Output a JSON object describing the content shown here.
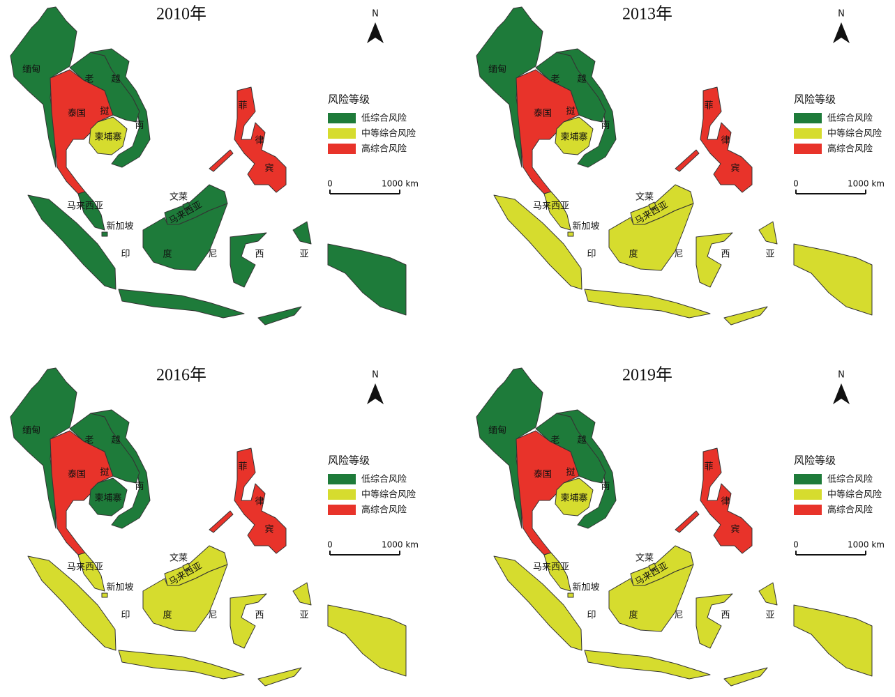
{
  "legend": {
    "title": "风险等级",
    "items": [
      {
        "label": "低综合风险",
        "color": "#1e7b3a"
      },
      {
        "label": "中等综合风险",
        "color": "#d6dc2e"
      },
      {
        "label": "高综合风险",
        "color": "#e8332a"
      }
    ]
  },
  "scale": {
    "ticks": [
      {
        "value": 0,
        "label": "0"
      },
      {
        "value": 1000,
        "label": "1000 km"
      }
    ]
  },
  "north": "N",
  "maps": [
    {
      "title": "2010年",
      "countries": [
        {
          "labels": [
            "缅甸"
          ],
          "color": "#1e7b3a"
        },
        {
          "labels": [
            "泰国"
          ],
          "color": "#e8332a"
        },
        {
          "labels": [
            "老",
            "挝"
          ],
          "color": "#1e7b3a"
        },
        {
          "labels": [
            "越",
            "南"
          ],
          "color": "#1e7b3a"
        },
        {
          "labels": [
            "柬埔寨"
          ],
          "color": "#d6dc2e"
        },
        {
          "labels": [
            "马来西亚",
            "马来西亚"
          ],
          "color": "#1e7b3a"
        },
        {
          "labels": [
            "文莱"
          ],
          "color": "#1e7b3a"
        },
        {
          "labels": [
            "新加坡"
          ],
          "color": "#1e7b3a"
        },
        {
          "labels": [
            "印",
            "度",
            "尼",
            "西",
            "亚"
          ],
          "color": "#1e7b3a"
        },
        {
          "labels": [
            "菲",
            "律",
            "宾"
          ],
          "color": "#e8332a"
        }
      ]
    },
    {
      "title": "2013年",
      "countries": [
        {
          "labels": [
            "缅甸"
          ],
          "color": "#1e7b3a"
        },
        {
          "labels": [
            "泰国"
          ],
          "color": "#e8332a"
        },
        {
          "labels": [
            "老",
            "挝"
          ],
          "color": "#1e7b3a"
        },
        {
          "labels": [
            "越",
            "南"
          ],
          "color": "#1e7b3a"
        },
        {
          "labels": [
            "柬埔寨"
          ],
          "color": "#d6dc2e"
        },
        {
          "labels": [
            "马来西亚",
            "马来西亚"
          ],
          "color": "#d6dc2e"
        },
        {
          "labels": [
            "文莱"
          ],
          "color": "#d6dc2e"
        },
        {
          "labels": [
            "新加坡"
          ],
          "color": "#d6dc2e"
        },
        {
          "labels": [
            "印",
            "度",
            "尼",
            "西",
            "亚"
          ],
          "color": "#d6dc2e"
        },
        {
          "labels": [
            "菲",
            "律",
            "宾"
          ],
          "color": "#e8332a"
        }
      ]
    },
    {
      "title": "2016年",
      "countries": [
        {
          "labels": [
            "缅甸"
          ],
          "color": "#1e7b3a"
        },
        {
          "labels": [
            "泰国"
          ],
          "color": "#e8332a"
        },
        {
          "labels": [
            "老",
            "挝"
          ],
          "color": "#1e7b3a"
        },
        {
          "labels": [
            "越",
            "南"
          ],
          "color": "#1e7b3a"
        },
        {
          "labels": [
            "柬埔寨"
          ],
          "color": "#1e7b3a"
        },
        {
          "labels": [
            "马来西亚",
            "马来西亚"
          ],
          "color": "#d6dc2e"
        },
        {
          "labels": [
            "文莱"
          ],
          "color": "#d6dc2e"
        },
        {
          "labels": [
            "新加坡"
          ],
          "color": "#d6dc2e"
        },
        {
          "labels": [
            "印",
            "度",
            "尼",
            "西",
            "亚"
          ],
          "color": "#d6dc2e"
        },
        {
          "labels": [
            "菲",
            "律",
            "宾"
          ],
          "color": "#e8332a"
        }
      ]
    },
    {
      "title": "2019年",
      "countries": [
        {
          "labels": [
            "缅甸"
          ],
          "color": "#1e7b3a"
        },
        {
          "labels": [
            "泰国"
          ],
          "color": "#e8332a"
        },
        {
          "labels": [
            "老",
            "挝"
          ],
          "color": "#1e7b3a"
        },
        {
          "labels": [
            "越",
            "南"
          ],
          "color": "#1e7b3a"
        },
        {
          "labels": [
            "柬埔寨"
          ],
          "color": "#d6dc2e"
        },
        {
          "labels": [
            "马来西亚",
            "马来西亚"
          ],
          "color": "#d6dc2e"
        },
        {
          "labels": [
            "文莱"
          ],
          "color": "#d6dc2e"
        },
        {
          "labels": [
            "新加坡"
          ],
          "color": "#d6dc2e"
        },
        {
          "labels": [
            "印",
            "度",
            "尼",
            "西",
            "亚"
          ],
          "color": "#d6dc2e"
        },
        {
          "labels": [
            "菲",
            "律",
            "宾"
          ],
          "color": "#e8332a"
        }
      ]
    }
  ]
}
